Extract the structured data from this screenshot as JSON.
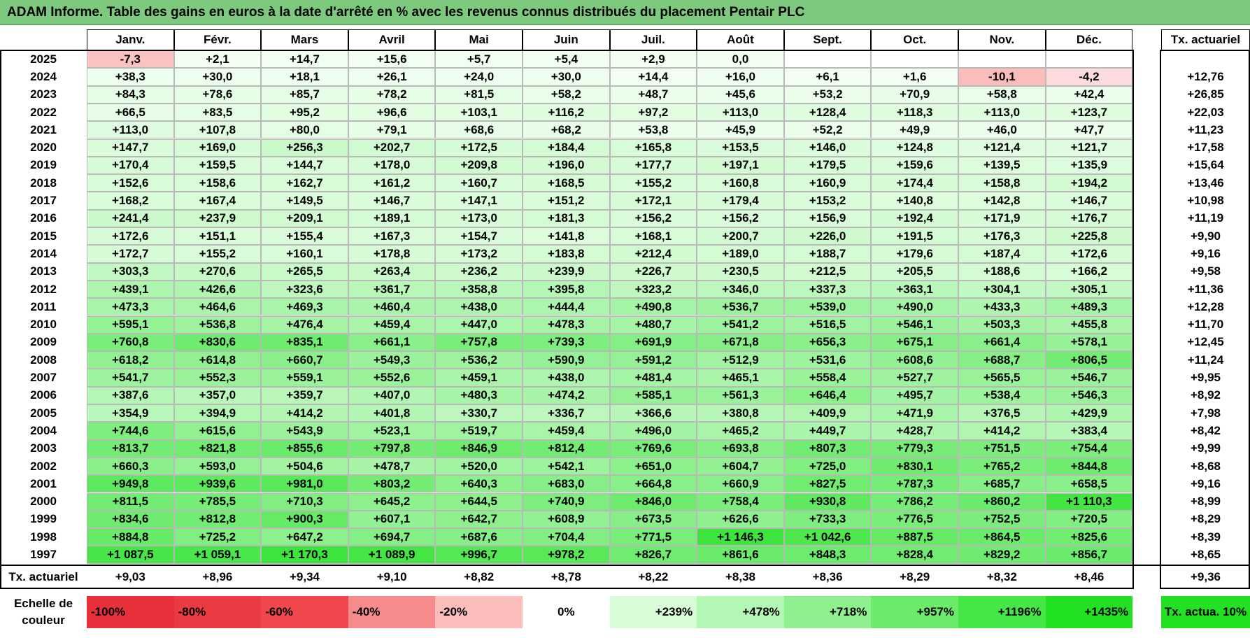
{
  "title": "ADAM Informe. Table des gains en euros à la date d'arrêté en % avec les revenus connus distribués du placement Pentair PLC",
  "months": [
    "Janv.",
    "Févr.",
    "Mars",
    "Avril",
    "Mai",
    "Juin",
    "Juil.",
    "Août",
    "Sept.",
    "Oct.",
    "Nov.",
    "Déc."
  ],
  "tx_header": "Tx. actuariel",
  "rows": [
    {
      "year": "2025",
      "values": [
        "-7,3",
        "+2,1",
        "+14,7",
        "+15,6",
        "+5,7",
        "+5,4",
        "+2,9",
        "0,0",
        "",
        "",
        "",
        ""
      ],
      "tx": ""
    },
    {
      "year": "2024",
      "values": [
        "+38,3",
        "+30,0",
        "+18,1",
        "+26,1",
        "+24,0",
        "+30,0",
        "+14,4",
        "+16,0",
        "+6,1",
        "+1,6",
        "-10,1",
        "-4,2"
      ],
      "tx": "+12,76"
    },
    {
      "year": "2023",
      "values": [
        "+84,3",
        "+78,6",
        "+85,7",
        "+78,2",
        "+81,5",
        "+58,2",
        "+48,7",
        "+45,6",
        "+53,2",
        "+70,9",
        "+58,8",
        "+42,4"
      ],
      "tx": "+26,85"
    },
    {
      "year": "2022",
      "values": [
        "+66,5",
        "+83,5",
        "+95,2",
        "+96,6",
        "+103,1",
        "+116,2",
        "+97,2",
        "+113,0",
        "+128,4",
        "+118,3",
        "+113,0",
        "+123,7"
      ],
      "tx": "+22,03"
    },
    {
      "year": "2021",
      "values": [
        "+113,0",
        "+107,8",
        "+80,0",
        "+79,1",
        "+68,6",
        "+68,2",
        "+53,8",
        "+45,9",
        "+52,2",
        "+49,9",
        "+46,0",
        "+47,7"
      ],
      "tx": "+11,23"
    },
    {
      "year": "2020",
      "values": [
        "+147,7",
        "+169,0",
        "+256,3",
        "+202,7",
        "+172,5",
        "+184,4",
        "+165,8",
        "+153,5",
        "+146,0",
        "+124,8",
        "+121,4",
        "+121,7"
      ],
      "tx": "+17,58"
    },
    {
      "year": "2019",
      "values": [
        "+170,4",
        "+159,5",
        "+144,7",
        "+178,0",
        "+209,8",
        "+196,0",
        "+177,7",
        "+197,1",
        "+179,5",
        "+159,6",
        "+139,5",
        "+135,9"
      ],
      "tx": "+15,64"
    },
    {
      "year": "2018",
      "values": [
        "+152,6",
        "+158,6",
        "+162,7",
        "+161,2",
        "+160,7",
        "+168,5",
        "+155,2",
        "+160,8",
        "+160,9",
        "+174,4",
        "+158,8",
        "+194,2"
      ],
      "tx": "+13,46"
    },
    {
      "year": "2017",
      "values": [
        "+168,2",
        "+167,4",
        "+149,5",
        "+146,7",
        "+147,1",
        "+151,2",
        "+172,1",
        "+179,4",
        "+153,2",
        "+140,8",
        "+142,8",
        "+146,7"
      ],
      "tx": "+10,98"
    },
    {
      "year": "2016",
      "values": [
        "+241,4",
        "+237,9",
        "+209,1",
        "+189,1",
        "+173,0",
        "+181,3",
        "+156,2",
        "+156,2",
        "+156,9",
        "+192,4",
        "+171,9",
        "+176,7"
      ],
      "tx": "+11,19"
    },
    {
      "year": "2015",
      "values": [
        "+172,6",
        "+151,1",
        "+155,4",
        "+167,3",
        "+154,7",
        "+141,8",
        "+168,1",
        "+200,7",
        "+226,0",
        "+191,5",
        "+176,3",
        "+225,8"
      ],
      "tx": "+9,90"
    },
    {
      "year": "2014",
      "values": [
        "+172,7",
        "+155,2",
        "+160,1",
        "+178,8",
        "+173,2",
        "+183,8",
        "+212,4",
        "+189,0",
        "+188,7",
        "+179,6",
        "+187,4",
        "+172,6"
      ],
      "tx": "+9,16"
    },
    {
      "year": "2013",
      "values": [
        "+303,3",
        "+270,6",
        "+265,5",
        "+263,4",
        "+236,2",
        "+239,9",
        "+226,7",
        "+230,5",
        "+212,5",
        "+205,5",
        "+188,6",
        "+166,2"
      ],
      "tx": "+9,58"
    },
    {
      "year": "2012",
      "values": [
        "+439,1",
        "+426,6",
        "+323,6",
        "+361,7",
        "+358,8",
        "+395,8",
        "+323,2",
        "+346,0",
        "+337,3",
        "+363,1",
        "+304,1",
        "+305,1"
      ],
      "tx": "+11,36"
    },
    {
      "year": "2011",
      "values": [
        "+473,3",
        "+464,6",
        "+469,3",
        "+460,4",
        "+438,0",
        "+444,4",
        "+490,8",
        "+536,7",
        "+539,0",
        "+490,0",
        "+433,3",
        "+489,3"
      ],
      "tx": "+12,28"
    },
    {
      "year": "2010",
      "values": [
        "+595,1",
        "+536,8",
        "+476,4",
        "+459,4",
        "+447,0",
        "+478,3",
        "+480,7",
        "+541,2",
        "+516,5",
        "+546,1",
        "+503,3",
        "+455,8"
      ],
      "tx": "+11,70"
    },
    {
      "year": "2009",
      "values": [
        "+760,8",
        "+830,6",
        "+835,1",
        "+661,1",
        "+757,8",
        "+739,3",
        "+691,9",
        "+671,8",
        "+656,3",
        "+675,1",
        "+661,4",
        "+578,1"
      ],
      "tx": "+12,45"
    },
    {
      "year": "2008",
      "values": [
        "+618,2",
        "+614,8",
        "+660,7",
        "+549,3",
        "+536,2",
        "+590,9",
        "+591,2",
        "+512,9",
        "+531,6",
        "+608,6",
        "+688,7",
        "+806,5"
      ],
      "tx": "+11,24"
    },
    {
      "year": "2007",
      "values": [
        "+541,7",
        "+552,3",
        "+559,1",
        "+552,6",
        "+459,1",
        "+438,0",
        "+481,4",
        "+465,1",
        "+558,4",
        "+527,7",
        "+565,5",
        "+546,7"
      ],
      "tx": "+9,95"
    },
    {
      "year": "2006",
      "values": [
        "+387,6",
        "+357,0",
        "+359,7",
        "+407,0",
        "+480,3",
        "+474,2",
        "+585,1",
        "+561,3",
        "+646,4",
        "+495,7",
        "+538,4",
        "+546,3"
      ],
      "tx": "+8,92"
    },
    {
      "year": "2005",
      "values": [
        "+354,9",
        "+394,9",
        "+414,2",
        "+401,8",
        "+330,7",
        "+336,7",
        "+366,6",
        "+380,8",
        "+409,9",
        "+471,9",
        "+376,5",
        "+429,9"
      ],
      "tx": "+7,98"
    },
    {
      "year": "2004",
      "values": [
        "+744,6",
        "+615,6",
        "+543,9",
        "+523,1",
        "+519,7",
        "+459,4",
        "+496,0",
        "+465,2",
        "+449,7",
        "+428,7",
        "+414,2",
        "+383,4"
      ],
      "tx": "+8,42"
    },
    {
      "year": "2003",
      "values": [
        "+813,7",
        "+821,8",
        "+855,6",
        "+797,8",
        "+846,9",
        "+812,4",
        "+769,6",
        "+693,8",
        "+807,3",
        "+779,3",
        "+751,5",
        "+754,4"
      ],
      "tx": "+9,99"
    },
    {
      "year": "2002",
      "values": [
        "+660,3",
        "+593,0",
        "+504,6",
        "+478,7",
        "+520,0",
        "+542,1",
        "+651,0",
        "+604,7",
        "+725,0",
        "+830,1",
        "+765,2",
        "+844,8"
      ],
      "tx": "+8,68"
    },
    {
      "year": "2001",
      "values": [
        "+949,8",
        "+939,6",
        "+981,0",
        "+803,2",
        "+640,3",
        "+683,0",
        "+664,8",
        "+660,9",
        "+827,5",
        "+787,3",
        "+685,7",
        "+658,5"
      ],
      "tx": "+9,16"
    },
    {
      "year": "2000",
      "values": [
        "+811,5",
        "+785,5",
        "+710,3",
        "+645,2",
        "+644,5",
        "+740,9",
        "+846,0",
        "+758,4",
        "+930,8",
        "+786,2",
        "+860,2",
        "+1 110,3"
      ],
      "tx": "+8,99"
    },
    {
      "year": "1999",
      "values": [
        "+834,6",
        "+812,8",
        "+900,3",
        "+607,1",
        "+642,7",
        "+608,9",
        "+673,5",
        "+626,6",
        "+733,3",
        "+776,5",
        "+752,5",
        "+720,5"
      ],
      "tx": "+8,29"
    },
    {
      "year": "1998",
      "values": [
        "+884,8",
        "+725,2",
        "+647,2",
        "+694,7",
        "+687,6",
        "+704,4",
        "+771,5",
        "+1 146,3",
        "+1 042,6",
        "+887,5",
        "+864,5",
        "+825,6"
      ],
      "tx": "+8,39"
    },
    {
      "year": "1997",
      "values": [
        "+1 087,5",
        "+1 059,1",
        "+1 170,3",
        "+1 089,9",
        "+996,7",
        "+978,2",
        "+826,7",
        "+861,6",
        "+848,3",
        "+828,4",
        "+829,2",
        "+856,7"
      ],
      "tx": "+8,65"
    }
  ],
  "total_row": {
    "label": "Tx. actuariel",
    "values": [
      "+9,03",
      "+8,96",
      "+9,34",
      "+9,10",
      "+8,82",
      "+8,78",
      "+8,22",
      "+8,38",
      "+8,36",
      "+8,29",
      "+8,32",
      "+8,46"
    ],
    "tx": "+9,36"
  },
  "scale": {
    "label": "Echelle de couleur",
    "steps": [
      {
        "text": "-100%",
        "color": "#e8303a",
        "align": "left"
      },
      {
        "text": "-80%",
        "color": "#ea3a42",
        "align": "left"
      },
      {
        "text": "-60%",
        "color": "#f0474d",
        "align": "left"
      },
      {
        "text": "-40%",
        "color": "#f58b8b",
        "align": "left"
      },
      {
        "text": "-20%",
        "color": "#fbbcbc",
        "align": "left"
      },
      {
        "text": "0%",
        "color": "#ffffff",
        "align": "center"
      },
      {
        "text": "+239%",
        "color": "#d8fbd8",
        "align": "right"
      },
      {
        "text": "+478%",
        "color": "#b4f6b4",
        "align": "right"
      },
      {
        "text": "+718%",
        "color": "#8ff08f",
        "align": "right"
      },
      {
        "text": "+957%",
        "color": "#6aeb6a",
        "align": "right"
      },
      {
        "text": "+1196%",
        "color": "#47e647",
        "align": "right"
      },
      {
        "text": "+1435%",
        "color": "#22e022",
        "align": "right"
      }
    ],
    "target_label": "Tx. actua. 10%",
    "target_color": "#22e022"
  },
  "colors": {
    "title_bg": "#7dc97d",
    "negative_max": "#e8303a",
    "positive_max": "#22e022"
  }
}
